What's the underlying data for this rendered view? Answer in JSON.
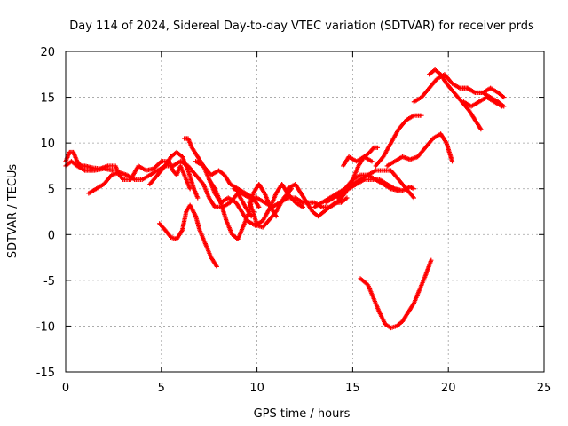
{
  "chart_data": {
    "type": "scatter",
    "title": "Day 114 of 2024, Sidereal Day-to-day VTEC variation (SDTVAR) for receiver prds",
    "xlabel": "GPS time / hours",
    "ylabel": "SDTVAR / TECUs",
    "xlim": [
      0,
      25
    ],
    "ylim": [
      -15,
      20
    ],
    "x_ticks": [
      "0",
      "5",
      "10",
      "15",
      "20",
      "25"
    ],
    "y_ticks": [
      "-15",
      "-10",
      "-5",
      "0",
      "5",
      "10",
      "15",
      "20"
    ],
    "x_tick_values": [
      0,
      5,
      10,
      15,
      20,
      25
    ],
    "y_tick_values": [
      -15,
      -10,
      -5,
      0,
      5,
      10,
      15,
      20
    ],
    "grid": true,
    "marker": "+",
    "color": "#ff0000",
    "series": [
      {
        "points": [
          [
            0,
            8
          ],
          [
            0.2,
            9
          ],
          [
            0.4,
            9
          ],
          [
            0.6,
            8
          ],
          [
            0.8,
            7.5
          ],
          [
            1.0,
            7.5
          ],
          [
            1.4,
            7.3
          ],
          [
            1.8,
            7.2
          ],
          [
            2.2,
            7.5
          ],
          [
            2.6,
            7.5
          ],
          [
            2.8,
            6.5
          ],
          [
            3.0,
            6
          ],
          [
            3.4,
            6
          ],
          [
            3.8,
            7.5
          ],
          [
            4.2,
            7
          ],
          [
            4.6,
            7.2
          ],
          [
            5.0,
            8
          ],
          [
            5.4,
            8
          ],
          [
            5.6,
            7
          ],
          [
            5.8,
            6.5
          ],
          [
            6.0,
            7.5
          ],
          [
            6.3,
            6
          ],
          [
            6.5,
            5
          ]
        ]
      },
      {
        "points": [
          [
            0,
            7.5
          ],
          [
            0.3,
            8
          ],
          [
            0.6,
            7.5
          ],
          [
            1.0,
            7
          ],
          [
            1.5,
            7
          ],
          [
            2.0,
            7.2
          ],
          [
            2.5,
            7
          ]
        ]
      },
      {
        "points": [
          [
            1.2,
            4.5
          ],
          [
            1.6,
            5
          ],
          [
            2.0,
            5.5
          ],
          [
            2.4,
            6.5
          ],
          [
            2.8,
            6.8
          ],
          [
            3.2,
            6.5
          ],
          [
            3.6,
            6
          ],
          [
            4.0,
            6
          ],
          [
            4.4,
            6.5
          ],
          [
            4.8,
            7
          ],
          [
            5.2,
            7.5
          ],
          [
            5.5,
            8.5
          ],
          [
            5.8,
            9
          ],
          [
            6.1,
            8.5
          ],
          [
            6.4,
            7
          ],
          [
            6.7,
            5
          ],
          [
            6.9,
            4
          ]
        ]
      },
      {
        "points": [
          [
            4.4,
            5.5
          ],
          [
            4.8,
            6.5
          ],
          [
            5.2,
            7.5
          ],
          [
            5.6,
            7.5
          ],
          [
            6.0,
            8
          ],
          [
            6.4,
            7.5
          ],
          [
            6.8,
            6.5
          ],
          [
            7.2,
            5.5
          ],
          [
            7.5,
            4
          ],
          [
            7.8,
            3
          ],
          [
            8.2,
            3
          ],
          [
            8.6,
            3.5
          ],
          [
            9.0,
            4.5
          ],
          [
            9.4,
            3
          ],
          [
            9.7,
            2
          ]
        ]
      },
      {
        "points": [
          [
            6.2,
            10.5
          ],
          [
            6.4,
            10.5
          ],
          [
            6.6,
            9.5
          ],
          [
            6.9,
            8.5
          ],
          [
            7.2,
            7.5
          ],
          [
            7.6,
            6.5
          ],
          [
            8.0,
            7
          ],
          [
            8.3,
            6.5
          ],
          [
            8.6,
            5.5
          ],
          [
            9.0,
            5
          ],
          [
            9.4,
            4.5
          ],
          [
            9.8,
            4
          ],
          [
            10.1,
            3
          ]
        ]
      },
      {
        "points": [
          [
            6.8,
            8
          ],
          [
            7.2,
            7.5
          ],
          [
            7.5,
            6
          ],
          [
            7.8,
            4.5
          ],
          [
            8.1,
            3.5
          ],
          [
            8.5,
            4
          ],
          [
            8.9,
            3.5
          ],
          [
            9.2,
            2.5
          ],
          [
            9.5,
            1.5
          ],
          [
            9.9,
            1
          ],
          [
            10.3,
            1.5
          ],
          [
            10.7,
            3
          ],
          [
            11.0,
            4.5
          ],
          [
            11.3,
            5.5
          ],
          [
            11.6,
            4.5
          ],
          [
            12.0,
            3.5
          ],
          [
            12.4,
            3
          ]
        ]
      },
      {
        "points": [
          [
            7.5,
            6
          ],
          [
            7.8,
            5
          ],
          [
            8.1,
            3.5
          ],
          [
            8.4,
            1.5
          ],
          [
            8.7,
            0
          ],
          [
            9.0,
            -0.5
          ],
          [
            9.3,
            1
          ],
          [
            9.6,
            2.5
          ],
          [
            9.8,
            4.5
          ],
          [
            10.1,
            5.5
          ],
          [
            10.4,
            4.5
          ],
          [
            10.7,
            3
          ],
          [
            11.0,
            2
          ]
        ]
      },
      {
        "points": [
          [
            8.8,
            5
          ],
          [
            9.2,
            4.5
          ],
          [
            9.6,
            4
          ],
          [
            10.0,
            4
          ],
          [
            10.4,
            3.5
          ],
          [
            10.8,
            3
          ],
          [
            11.2,
            3.5
          ],
          [
            11.6,
            4
          ],
          [
            12.0,
            4
          ],
          [
            12.4,
            3.5
          ]
        ]
      },
      {
        "points": [
          [
            9.6,
            3.5
          ],
          [
            9.8,
            2.5
          ],
          [
            10.0,
            1
          ],
          [
            10.3,
            0.8
          ],
          [
            10.6,
            1.5
          ],
          [
            11.0,
            2.5
          ],
          [
            11.4,
            4
          ],
          [
            11.8,
            5
          ]
        ]
      },
      {
        "points": [
          [
            11.6,
            5
          ],
          [
            12.0,
            5.5
          ],
          [
            12.3,
            4.5
          ],
          [
            12.6,
            3.5
          ],
          [
            12.9,
            2.5
          ],
          [
            13.2,
            2
          ],
          [
            13.5,
            2.5
          ],
          [
            13.8,
            3
          ],
          [
            14.1,
            3.5
          ],
          [
            14.4,
            3.5
          ],
          [
            14.7,
            4
          ]
        ]
      },
      {
        "points": [
          [
            12.2,
            3.5
          ],
          [
            12.6,
            3.5
          ],
          [
            13.0,
            3.5
          ],
          [
            13.4,
            3
          ],
          [
            13.8,
            3
          ],
          [
            14.2,
            3.5
          ],
          [
            14.6,
            4.5
          ],
          [
            15.0,
            6
          ],
          [
            15.3,
            7.5
          ],
          [
            15.6,
            8.5
          ],
          [
            15.9,
            9
          ],
          [
            16.1,
            9.5
          ],
          [
            16.3,
            9.5
          ]
        ]
      },
      {
        "points": [
          [
            13.0,
            3
          ],
          [
            13.4,
            3.5
          ],
          [
            13.8,
            4
          ],
          [
            14.2,
            4.5
          ],
          [
            14.6,
            5
          ],
          [
            15.0,
            5.5
          ],
          [
            15.4,
            6
          ],
          [
            15.8,
            6.5
          ],
          [
            16.2,
            7
          ],
          [
            16.6,
            7
          ],
          [
            17.0,
            7
          ],
          [
            17.4,
            6
          ],
          [
            17.8,
            5
          ],
          [
            18.2,
            4
          ]
        ]
      },
      {
        "points": [
          [
            13.6,
            3.5
          ],
          [
            14.0,
            4
          ],
          [
            14.4,
            4.5
          ],
          [
            14.8,
            5
          ],
          [
            15.2,
            5.5
          ],
          [
            15.6,
            6
          ],
          [
            16.0,
            6
          ],
          [
            16.4,
            6
          ],
          [
            16.8,
            5.5
          ],
          [
            17.2,
            5
          ],
          [
            17.6,
            4.8
          ],
          [
            18.0,
            5.2
          ],
          [
            18.2,
            5
          ]
        ]
      },
      {
        "points": [
          [
            14.2,
            4
          ],
          [
            14.6,
            5
          ],
          [
            15.0,
            6
          ],
          [
            15.4,
            6.5
          ],
          [
            15.8,
            6.5
          ],
          [
            16.2,
            6
          ],
          [
            16.6,
            5.5
          ],
          [
            17.0,
            5
          ],
          [
            17.4,
            4.8
          ]
        ]
      },
      {
        "points": [
          [
            14.5,
            7.5
          ],
          [
            14.8,
            8.5
          ],
          [
            15.2,
            8
          ],
          [
            15.6,
            8.5
          ],
          [
            16.0,
            8
          ]
        ]
      },
      {
        "points": [
          [
            16.2,
            7.5
          ],
          [
            16.6,
            8.5
          ],
          [
            17.0,
            10
          ],
          [
            17.4,
            11.5
          ],
          [
            17.8,
            12.5
          ],
          [
            18.2,
            13
          ],
          [
            18.6,
            13
          ]
        ]
      },
      {
        "points": [
          [
            16.8,
            7.5
          ],
          [
            17.2,
            8
          ],
          [
            17.6,
            8.5
          ],
          [
            18.0,
            8.2
          ],
          [
            18.4,
            8.5
          ],
          [
            18.8,
            9.5
          ],
          [
            19.2,
            10.5
          ],
          [
            19.6,
            11
          ],
          [
            19.9,
            10
          ],
          [
            20.2,
            8
          ]
        ]
      },
      {
        "points": [
          [
            18.2,
            14.5
          ],
          [
            18.6,
            15
          ],
          [
            19.0,
            16
          ],
          [
            19.4,
            17
          ],
          [
            19.8,
            17.5
          ],
          [
            20.2,
            16.5
          ],
          [
            20.6,
            16
          ],
          [
            21.0,
            16
          ],
          [
            21.4,
            15.5
          ],
          [
            21.8,
            15.5
          ],
          [
            22.2,
            15
          ],
          [
            22.6,
            14.5
          ],
          [
            22.9,
            14
          ]
        ]
      },
      {
        "points": [
          [
            19.0,
            17.5
          ],
          [
            19.3,
            18
          ],
          [
            19.6,
            17.5
          ],
          [
            19.9,
            16.5
          ],
          [
            20.3,
            15.5
          ],
          [
            20.7,
            14.5
          ],
          [
            21.1,
            13.5
          ],
          [
            21.4,
            12.5
          ],
          [
            21.7,
            11.5
          ]
        ]
      },
      {
        "points": [
          [
            20.6,
            16
          ],
          [
            21.0,
            16
          ],
          [
            21.4,
            15.5
          ],
          [
            21.8,
            15.5
          ],
          [
            22.2,
            16
          ],
          [
            22.6,
            15.5
          ],
          [
            22.9,
            15
          ]
        ]
      },
      {
        "points": [
          [
            20.8,
            14.5
          ],
          [
            21.2,
            14
          ],
          [
            21.6,
            14.5
          ],
          [
            22.0,
            15
          ],
          [
            22.4,
            14.5
          ],
          [
            22.8,
            14
          ]
        ]
      },
      {
        "points": [
          [
            15.4,
            -4.8
          ],
          [
            15.8,
            -5.5
          ],
          [
            16.1,
            -7
          ],
          [
            16.4,
            -8.5
          ],
          [
            16.7,
            -9.8
          ],
          [
            17.0,
            -10.2
          ],
          [
            17.3,
            -10
          ],
          [
            17.6,
            -9.5
          ],
          [
            17.9,
            -8.5
          ],
          [
            18.2,
            -7.5
          ],
          [
            18.5,
            -6
          ],
          [
            18.8,
            -4.5
          ],
          [
            19.1,
            -2.8
          ]
        ]
      },
      {
        "points": [
          [
            4.9,
            1.2
          ],
          [
            5.2,
            0.5
          ],
          [
            5.5,
            -0.3
          ],
          [
            5.8,
            -0.5
          ],
          [
            6.1,
            0.5
          ],
          [
            6.3,
            2.5
          ],
          [
            6.5,
            3.2
          ],
          [
            6.8,
            2
          ],
          [
            7.0,
            0.5
          ],
          [
            7.3,
            -1
          ],
          [
            7.6,
            -2.5
          ],
          [
            7.9,
            -3.5
          ]
        ]
      }
    ]
  }
}
